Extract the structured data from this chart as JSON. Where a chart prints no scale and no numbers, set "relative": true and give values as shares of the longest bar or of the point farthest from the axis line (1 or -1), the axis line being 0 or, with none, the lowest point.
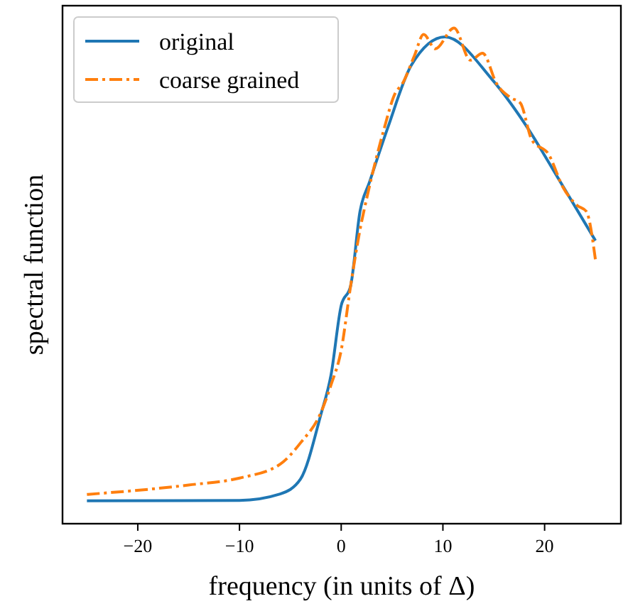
{
  "chart_data": {
    "type": "line",
    "xlabel": "frequency (in units of Δ)",
    "ylabel": "spectral function",
    "relative": true,
    "xlim": [
      -27.4,
      27.5
    ],
    "xticks": [
      {
        "value": -20,
        "label": "−20"
      },
      {
        "value": -10,
        "label": "−10"
      },
      0,
      10,
      20
    ],
    "legend": "top left",
    "grid": false,
    "series": [
      {
        "name": "original",
        "color": "#1f77b4",
        "line_style": "solid",
        "x": [
          -25,
          -10,
          -6,
          -4,
          -2,
          -1,
          0,
          0.93,
          1.85,
          2.8,
          4.6,
          6.9,
          10.2,
          14.8,
          18.5,
          21.3,
          25
        ],
        "values": [
          0.046,
          0.047,
          0.06,
          0.09,
          0.22,
          0.3,
          0.44,
          0.48,
          0.63,
          0.69,
          0.8,
          0.925,
          0.982,
          0.897,
          0.793,
          0.698,
          0.571
        ]
      },
      {
        "name": "coarse grained",
        "color": "#ff7f0e",
        "line_style": "dashdot",
        "x": [
          -25,
          -15,
          -10,
          -6,
          -4,
          -2,
          -1,
          0,
          0.93,
          1.85,
          2.55,
          4.17,
          5.3,
          6.0,
          7.2,
          8.1,
          9.26,
          11.1,
          12.7,
          13.9,
          15.3,
          16.7,
          17.6,
          18.75,
          20.4,
          21.8,
          23.2,
          24.1,
          25
        ],
        "values": [
          0.059,
          0.078,
          0.092,
          0.12,
          0.163,
          0.224,
          0.28,
          0.35,
          0.48,
          0.593,
          0.66,
          0.793,
          0.868,
          0.887,
          0.944,
          0.987,
          0.958,
          1.0,
          0.935,
          0.949,
          0.887,
          0.859,
          0.849,
          0.774,
          0.745,
          0.679,
          0.642,
          0.63,
          0.532
        ]
      }
    ]
  }
}
